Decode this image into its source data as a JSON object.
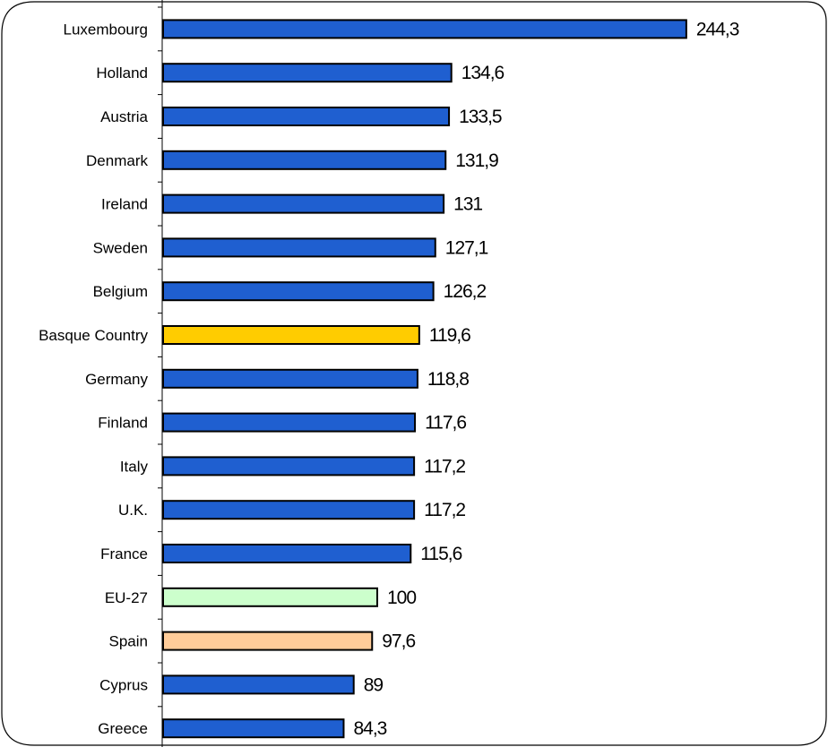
{
  "chart_data": {
    "type": "bar",
    "orientation": "horizontal",
    "title": "",
    "xlabel": "",
    "ylabel": "",
    "xlim": [
      0,
      250
    ],
    "grid": false,
    "legend": "none",
    "categories": [
      "Luxembourg",
      "Holland",
      "Austria",
      "Denmark",
      "Ireland",
      "Sweden",
      "Belgium",
      "Basque Country",
      "Germany",
      "Finland",
      "Italy",
      "U.K.",
      "France",
      "EU-27",
      "Spain",
      "Cyprus",
      "Greece"
    ],
    "values": [
      244.3,
      134.6,
      133.5,
      131.9,
      131,
      127.1,
      126.2,
      119.6,
      118.8,
      117.6,
      117.2,
      117.2,
      115.6,
      100,
      97.6,
      89,
      84.3
    ],
    "data_labels": [
      "244,3",
      "134,6",
      "133,5",
      "131,9",
      "131",
      "127,1",
      "126,2",
      "119,6",
      "118,8",
      "117,6",
      "117,2",
      "117,2",
      "115,6",
      "100",
      "97,6",
      "89",
      "84,3"
    ],
    "colors": {
      "default": "#1f5fd0",
      "Basque Country": "#ffcc00",
      "EU-27": "#ccffcc",
      "Spain": "#ffcc99"
    }
  }
}
